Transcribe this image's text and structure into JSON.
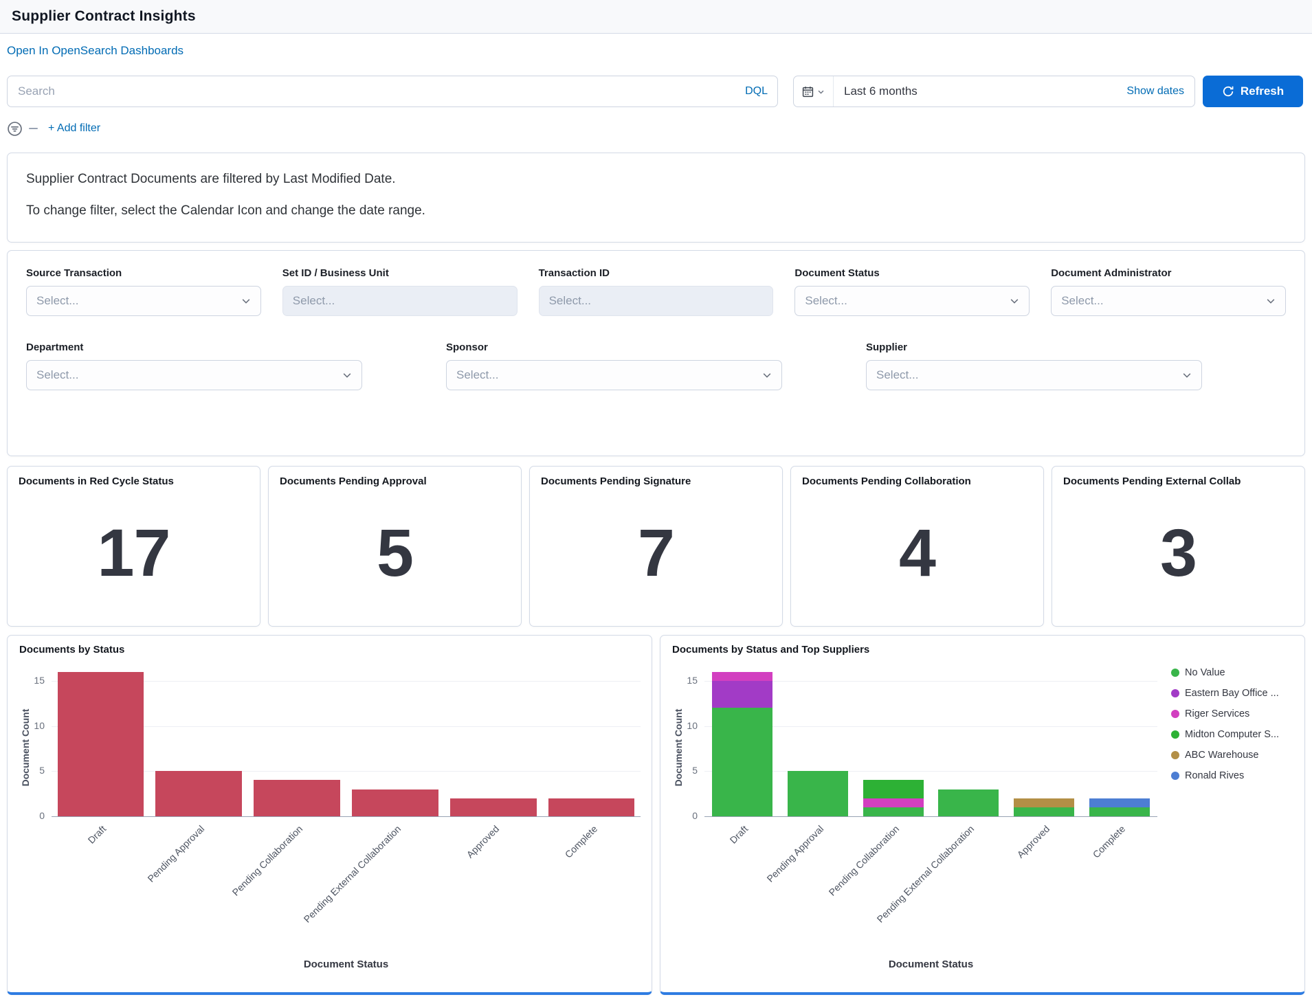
{
  "colors": {
    "link": "#006bb4",
    "primary_button": "#0a6cd6",
    "panel_border": "#d3dae6",
    "accent_strip": "#2e7ce2",
    "bar_red": "#c6475c",
    "text": "#343741"
  },
  "header": {
    "title": "Supplier Contract Insights"
  },
  "toolbar": {
    "open_link": "Open In OpenSearch Dashboards",
    "search_placeholder": "Search",
    "dql_label": "DQL",
    "date_range": "Last 6 months",
    "show_dates_label": "Show dates",
    "refresh_label": "Refresh",
    "add_filter_label": "+ Add filter"
  },
  "notice": {
    "line1": "Supplier Contract Documents are filtered by Last Modified Date.",
    "line2": "To change filter, select the Calendar Icon and change the date range."
  },
  "filters": {
    "row1": [
      {
        "label": "Source Transaction",
        "placeholder": "Select..."
      },
      {
        "label": "Set ID / Business Unit",
        "placeholder": "Select..."
      },
      {
        "label": "Transaction ID",
        "placeholder": "Select..."
      },
      {
        "label": "Document Status",
        "placeholder": "Select..."
      },
      {
        "label": "Document Administrator",
        "placeholder": "Select..."
      }
    ],
    "row2": [
      {
        "label": "Department",
        "placeholder": "Select..."
      },
      {
        "label": "Sponsor",
        "placeholder": "Select..."
      },
      {
        "label": "Supplier",
        "placeholder": "Select..."
      }
    ]
  },
  "metric_cards": [
    {
      "title": "Documents in Red Cycle Status",
      "value": "17"
    },
    {
      "title": "Documents Pending Approval",
      "value": "5"
    },
    {
      "title": "Documents Pending Signature",
      "value": "7"
    },
    {
      "title": "Documents Pending Collaboration",
      "value": "4"
    },
    {
      "title": "Documents Pending External Collab",
      "value": "3"
    }
  ],
  "chart_data": [
    {
      "type": "bar",
      "title": "Documents by Status",
      "categories": [
        "Draft",
        "Pending Approval",
        "Pending Collaboration",
        "Pending External Collaboration",
        "Approved",
        "Complete"
      ],
      "values": [
        16,
        5,
        4,
        3,
        2,
        2
      ],
      "bar_color": "#c6475c",
      "xlabel": "Document Status",
      "ylabel": "Document Count",
      "ylim": [
        0,
        16
      ],
      "yticks": [
        0,
        5,
        10,
        15
      ],
      "grid": true,
      "legend": false
    },
    {
      "type": "bar",
      "stacked": true,
      "title": "Documents by Status and Top Suppliers",
      "categories": [
        "Draft",
        "Pending Approval",
        "Pending Collaboration",
        "Pending External Collaboration",
        "Approved",
        "Complete"
      ],
      "series": [
        {
          "name": "No Value",
          "color": "#39b54a",
          "values": [
            12,
            5,
            1,
            3,
            1,
            1
          ]
        },
        {
          "name": "Eastern Bay Office ...",
          "color": "#a23bc6",
          "values": [
            3,
            0,
            0,
            0,
            0,
            0
          ]
        },
        {
          "name": "Riger Services",
          "color": "#d23fc0",
          "values": [
            1,
            0,
            1,
            0,
            0,
            0
          ]
        },
        {
          "name": "Midton Computer S...",
          "color": "#2db135",
          "values": [
            0,
            0,
            2,
            0,
            0,
            0
          ]
        },
        {
          "name": "ABC Warehouse",
          "color": "#b38f46",
          "values": [
            0,
            0,
            0,
            0,
            1,
            0
          ]
        },
        {
          "name": "Ronald Rives",
          "color": "#4d7ed3",
          "values": [
            0,
            0,
            0,
            0,
            0,
            1
          ]
        }
      ],
      "xlabel": "Document Status",
      "ylabel": "Document Count",
      "ylim": [
        0,
        16
      ],
      "yticks": [
        0,
        5,
        10,
        15
      ],
      "grid": true,
      "legend": true,
      "legend_position": "right"
    }
  ]
}
